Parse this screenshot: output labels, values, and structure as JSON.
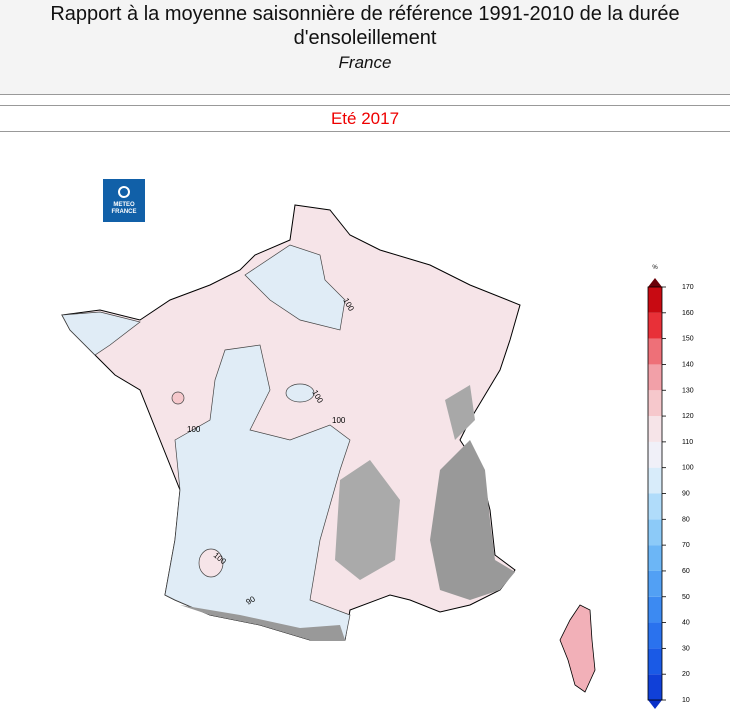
{
  "header": {
    "title": "Rapport à la moyenne saisonnière de référence 1991-2010 de la durée d'ensoleillement",
    "subtitle": "France"
  },
  "season": "Eté 2017",
  "logo": [
    "METEO",
    "FRANCE"
  ],
  "contour_labels": [
    100,
    100,
    100,
    100,
    100,
    90
  ],
  "colorbar": {
    "unit": "%",
    "ticks": [
      10,
      20,
      30,
      40,
      50,
      60,
      70,
      80,
      90,
      100,
      110,
      120,
      130,
      140,
      150,
      160,
      170
    ],
    "colors": [
      "#1040d8",
      "#1a5ae6",
      "#2a72ee",
      "#3c8af2",
      "#52a0f4",
      "#6cb6f6",
      "#8ccaf8",
      "#b0dcfa",
      "#d8ecfa",
      "#f0f0f8",
      "#f6e4e8",
      "#f6c8cc",
      "#f2a0a8",
      "#ee7078",
      "#e83038",
      "#c80a12"
    ]
  }
}
